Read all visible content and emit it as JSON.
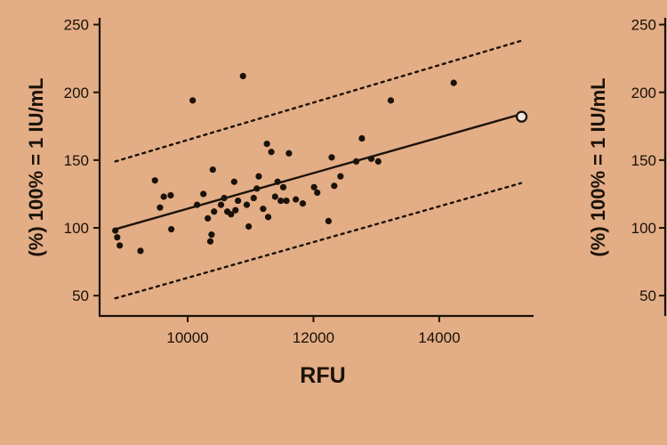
{
  "chart_data": [
    {
      "type": "scatter",
      "xlabel": "RFU",
      "ylabel": "(%) 100% = 1 IU/mL",
      "xlim": [
        8600,
        15500
      ],
      "ylim": [
        35,
        255
      ],
      "xticks": [
        10000,
        12000,
        14000
      ],
      "yticks": [
        50,
        100,
        150,
        200,
        250
      ],
      "xtick_labels": [
        "10000",
        "12000",
        "14000"
      ],
      "ytick_labels": [
        "50",
        "100",
        "150",
        "200",
        "250"
      ],
      "points": [
        {
          "x": 8850,
          "y": 98
        },
        {
          "x": 8880,
          "y": 93
        },
        {
          "x": 8920,
          "y": 87
        },
        {
          "x": 9250,
          "y": 83
        },
        {
          "x": 9480,
          "y": 135
        },
        {
          "x": 9560,
          "y": 115
        },
        {
          "x": 9620,
          "y": 123
        },
        {
          "x": 9730,
          "y": 124
        },
        {
          "x": 9740,
          "y": 99
        },
        {
          "x": 10080,
          "y": 194
        },
        {
          "x": 10150,
          "y": 117
        },
        {
          "x": 10250,
          "y": 125
        },
        {
          "x": 10320,
          "y": 107
        },
        {
          "x": 10360,
          "y": 90
        },
        {
          "x": 10380,
          "y": 95
        },
        {
          "x": 10400,
          "y": 143
        },
        {
          "x": 10420,
          "y": 112
        },
        {
          "x": 10530,
          "y": 117
        },
        {
          "x": 10580,
          "y": 122
        },
        {
          "x": 10630,
          "y": 112
        },
        {
          "x": 10690,
          "y": 110
        },
        {
          "x": 10740,
          "y": 134
        },
        {
          "x": 10760,
          "y": 113
        },
        {
          "x": 10800,
          "y": 120
        },
        {
          "x": 10880,
          "y": 212
        },
        {
          "x": 10940,
          "y": 117
        },
        {
          "x": 10970,
          "y": 101
        },
        {
          "x": 11050,
          "y": 122
        },
        {
          "x": 11100,
          "y": 129
        },
        {
          "x": 11130,
          "y": 138
        },
        {
          "x": 11200,
          "y": 114
        },
        {
          "x": 11260,
          "y": 162
        },
        {
          "x": 11280,
          "y": 108
        },
        {
          "x": 11330,
          "y": 156
        },
        {
          "x": 11390,
          "y": 123
        },
        {
          "x": 11430,
          "y": 134
        },
        {
          "x": 11480,
          "y": 120
        },
        {
          "x": 11520,
          "y": 130
        },
        {
          "x": 11570,
          "y": 120
        },
        {
          "x": 11610,
          "y": 155
        },
        {
          "x": 11720,
          "y": 121
        },
        {
          "x": 11830,
          "y": 118
        },
        {
          "x": 12010,
          "y": 130
        },
        {
          "x": 12060,
          "y": 126
        },
        {
          "x": 12240,
          "y": 105
        },
        {
          "x": 12290,
          "y": 152
        },
        {
          "x": 12330,
          "y": 131
        },
        {
          "x": 12430,
          "y": 138
        },
        {
          "x": 12680,
          "y": 149
        },
        {
          "x": 12770,
          "y": 166
        },
        {
          "x": 12920,
          "y": 151
        },
        {
          "x": 13030,
          "y": 149
        },
        {
          "x": 13230,
          "y": 194
        },
        {
          "x": 14230,
          "y": 207
        }
      ],
      "outlier_point": {
        "x": 15310,
        "y": 182
      },
      "fit_line": {
        "x": [
          8850,
          15310
        ],
        "y": [
          99,
          184
        ]
      },
      "bounds": [
        {
          "name": "upper",
          "x": [
            8850,
            15300
          ],
          "y": [
            149,
            238
          ]
        },
        {
          "name": "lower",
          "x": [
            8850,
            15300
          ],
          "y": [
            48,
            133
          ]
        }
      ],
      "grid": false
    },
    {
      "type": "scatter",
      "xlabel": "",
      "ylabel": "(%) 100% = 1 IU/mL",
      "ylim": [
        35,
        255
      ],
      "yticks": [
        50,
        100,
        150,
        200,
        250
      ],
      "ytick_labels": [
        "50",
        "100",
        "150",
        "200",
        "250"
      ],
      "points": []
    }
  ]
}
